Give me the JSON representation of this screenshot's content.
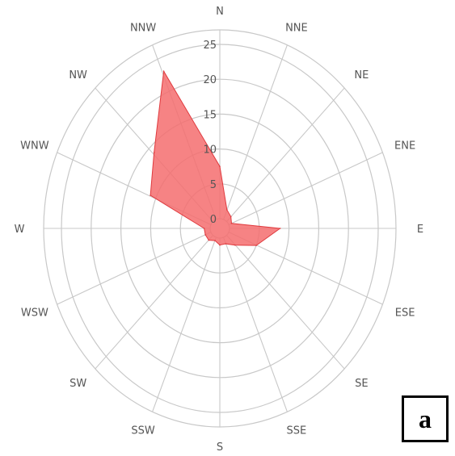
{
  "chart_data": {
    "type": "radar",
    "directions": [
      "N",
      "NNE",
      "NE",
      "ENE",
      "E",
      "ESE",
      "SE",
      "SSE",
      "S",
      "SSW",
      "SW",
      "WSW",
      "W",
      "WNW",
      "NW",
      "NNW"
    ],
    "values": [
      7.5,
      1.5,
      1,
      0.5,
      8.5,
      5,
      2,
      1,
      1,
      0.5,
      1,
      1,
      1,
      11,
      14,
      23
    ],
    "radial_ticks": [
      "0",
      "5",
      "10",
      "15",
      "20",
      "25"
    ],
    "rlim": [
      0,
      25
    ],
    "grid": true,
    "fill_color": "#f46d6f"
  },
  "panel_label": "a"
}
